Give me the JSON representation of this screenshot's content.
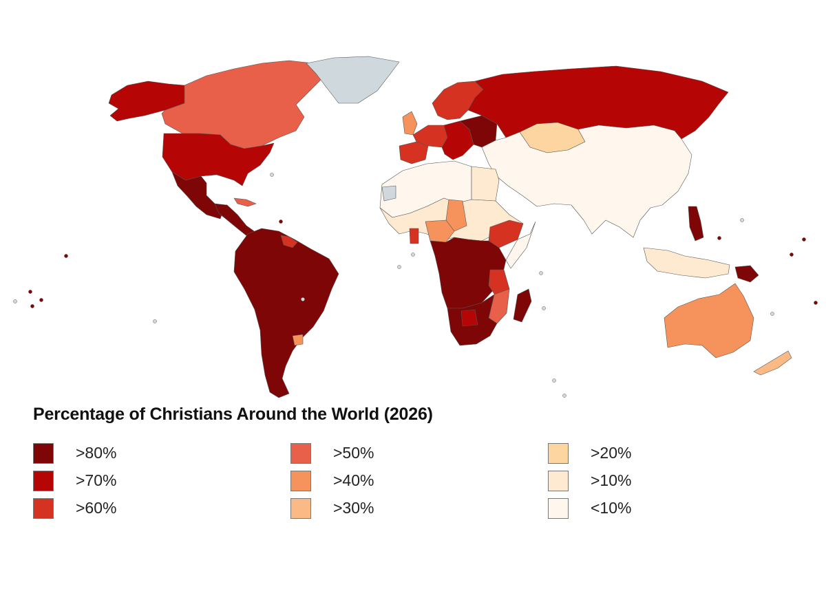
{
  "title": "Percentage of Christians Around the World (2026)",
  "colors": {
    "gt80": "#7e0606",
    "gt70": "#b50505",
    "gt60": "#d63222",
    "gt50": "#e8604a",
    "gt40": "#f6925c",
    "gt30": "#fbba85",
    "gt20": "#fdd5a0",
    "gt10": "#feead0",
    "lt10": "#fff7ee",
    "no_data": "#cfd8dc",
    "ocean": "#ffffff"
  },
  "legend": [
    {
      "label": ">80%",
      "key": "gt80"
    },
    {
      "label": ">70%",
      "key": "gt70"
    },
    {
      "label": ">60%",
      "key": "gt60"
    },
    {
      "label": ">50%",
      "key": "gt50"
    },
    {
      "label": ">40%",
      "key": "gt40"
    },
    {
      "label": ">30%",
      "key": "gt30"
    },
    {
      "label": ">20%",
      "key": "gt20"
    },
    {
      "label": ">10%",
      "key": "gt10"
    },
    {
      "label": "<10%",
      "key": "lt10"
    }
  ],
  "regions": [
    {
      "name": "Alaska",
      "category": "gt70"
    },
    {
      "name": "Canada",
      "category": "gt50"
    },
    {
      "name": "Greenland",
      "category": "no_data"
    },
    {
      "name": "United States",
      "category": "gt70"
    },
    {
      "name": "Mexico",
      "category": "gt80"
    },
    {
      "name": "Central America",
      "category": "gt80"
    },
    {
      "name": "Cuba",
      "category": "gt50"
    },
    {
      "name": "South America",
      "category": "gt80"
    },
    {
      "name": "Uruguay",
      "category": "gt40"
    },
    {
      "name": "Guianas",
      "category": "gt60"
    },
    {
      "name": "Russia",
      "category": "gt70"
    },
    {
      "name": "Scandinavia",
      "category": "gt60"
    },
    {
      "name": "United Kingdom",
      "category": "gt40"
    },
    {
      "name": "Western Europe",
      "category": "gt60"
    },
    {
      "name": "Central Europe",
      "category": "gt70"
    },
    {
      "name": "Eastern Europe",
      "category": "gt80"
    },
    {
      "name": "Iberia",
      "category": "gt60"
    },
    {
      "name": "Kazakhstan",
      "category": "gt20"
    },
    {
      "name": "Asia",
      "category": "lt10"
    },
    {
      "name": "Philippines",
      "category": "gt80"
    },
    {
      "name": "Indonesia",
      "category": "gt10"
    },
    {
      "name": "Papua New Guinea",
      "category": "gt80"
    },
    {
      "name": "Australia",
      "category": "gt40"
    },
    {
      "name": "New Zealand",
      "category": "gt30"
    },
    {
      "name": "North Africa",
      "category": "lt10"
    },
    {
      "name": "Western Sahara",
      "category": "no_data"
    },
    {
      "name": "Egypt",
      "category": "gt10"
    },
    {
      "name": "Sahel West Africa",
      "category": "gt10"
    },
    {
      "name": "Nigeria",
      "category": "gt40"
    },
    {
      "name": "Chad",
      "category": "gt40"
    },
    {
      "name": "Ghana",
      "category": "gt60"
    },
    {
      "name": "Ethiopia",
      "category": "gt60"
    },
    {
      "name": "Somalia",
      "category": "lt10"
    },
    {
      "name": "Central Africa",
      "category": "gt80"
    },
    {
      "name": "Tanzania",
      "category": "gt60"
    },
    {
      "name": "Mozambique",
      "category": "gt50"
    },
    {
      "name": "Southern Africa",
      "category": "gt80"
    },
    {
      "name": "Botswana",
      "category": "gt70"
    },
    {
      "name": "Madagascar",
      "category": "gt80"
    }
  ]
}
